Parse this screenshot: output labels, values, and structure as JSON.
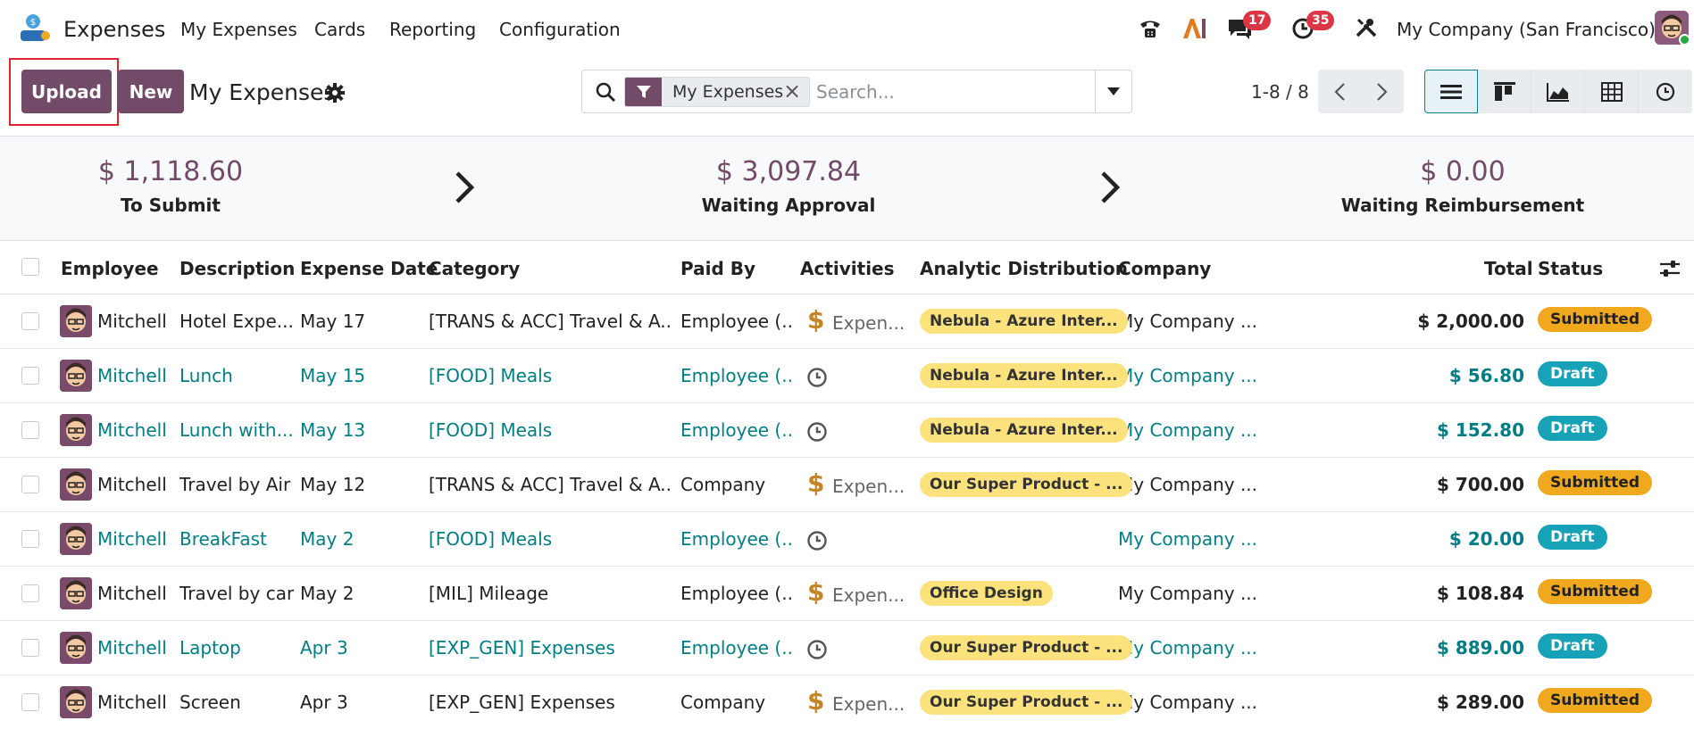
{
  "app": {
    "name": "Expenses",
    "menu": [
      "My Expenses",
      "Cards",
      "Reporting",
      "Configuration"
    ],
    "messages_badge": "17",
    "activities_badge": "35",
    "company": "My Company (San Francisco)"
  },
  "control": {
    "upload_label": "Upload",
    "new_label": "New",
    "title": "My Expenses",
    "facet_label": "My Expenses",
    "search_placeholder": "Search...",
    "pager": "1-8 / 8"
  },
  "summary": [
    {
      "amount": "$ 1,118.60",
      "label": "To Submit"
    },
    {
      "amount": "$ 3,097.84",
      "label": "Waiting Approval"
    },
    {
      "amount": "$ 0.00",
      "label": "Waiting Reimbursement"
    }
  ],
  "columns": {
    "employee": "Employee",
    "description": "Description",
    "date": "Expense Date",
    "category": "Category",
    "paid_by": "Paid By",
    "activities": "Activities",
    "analytic": "Analytic Distribution",
    "company": "Company",
    "total": "Total",
    "status": "Status"
  },
  "rows": [
    {
      "employee": "Mitchell Admin",
      "description": "Hotel Expe...",
      "date": "May 17",
      "category": "[TRANS & ACC] Travel & A...",
      "paid_by": "Employee (...",
      "activity": "Expen...",
      "analytic": "Nebula - Azure Inter...",
      "company": "My Company ...",
      "total": "$ 2,000.00",
      "status": "Submitted"
    },
    {
      "employee": "Mitchell Admin",
      "description": "Lunch",
      "date": "May 15",
      "category": "[FOOD] Meals",
      "paid_by": "Employee (...",
      "activity": "",
      "analytic": "Nebula - Azure Inter...",
      "company": "My Company ...",
      "total": "$ 56.80",
      "status": "Draft"
    },
    {
      "employee": "Mitchell Admin",
      "description": "Lunch with...",
      "date": "May 13",
      "category": "[FOOD] Meals",
      "paid_by": "Employee (...",
      "activity": "",
      "analytic": "Nebula - Azure Inter...",
      "company": "My Company ...",
      "total": "$ 152.80",
      "status": "Draft"
    },
    {
      "employee": "Mitchell Admin",
      "description": "Travel by Air",
      "date": "May 12",
      "category": "[TRANS & ACC] Travel & A...",
      "paid_by": "Company",
      "activity": "Expen...",
      "analytic": "Our Super Product - ...",
      "company": "My Company ...",
      "total": "$ 700.00",
      "status": "Submitted"
    },
    {
      "employee": "Mitchell Admin",
      "description": "BreakFast",
      "date": "May 2",
      "category": "[FOOD] Meals",
      "paid_by": "Employee (...",
      "activity": "",
      "analytic": "",
      "company": "My Company ...",
      "total": "$ 20.00",
      "status": "Draft"
    },
    {
      "employee": "Mitchell Admin",
      "description": "Travel by car",
      "date": "May 2",
      "category": "[MIL] Mileage",
      "paid_by": "Employee (...",
      "activity": "Expen...",
      "analytic": "Office Design",
      "company": "My Company ...",
      "total": "$ 108.84",
      "status": "Submitted"
    },
    {
      "employee": "Mitchell Admin",
      "description": "Laptop",
      "date": "Apr 3",
      "category": "[EXP_GEN] Expenses",
      "paid_by": "Employee (...",
      "activity": "",
      "analytic": "Our Super Product - ...",
      "company": "My Company ...",
      "total": "$ 889.00",
      "status": "Draft"
    },
    {
      "employee": "Mitchell Admin",
      "description": "Screen",
      "date": "Apr 3",
      "category": "[EXP_GEN] Expenses",
      "paid_by": "Company",
      "activity": "Expen...",
      "analytic": "Our Super Product - ...",
      "company": "My Company ...",
      "total": "$ 289.00",
      "status": "Submitted"
    }
  ],
  "colors": {
    "brand": "#714b67",
    "link": "#017e84",
    "submitted": "#f0a81e",
    "draft": "#17a2b8",
    "tag": "#fbe27d"
  }
}
